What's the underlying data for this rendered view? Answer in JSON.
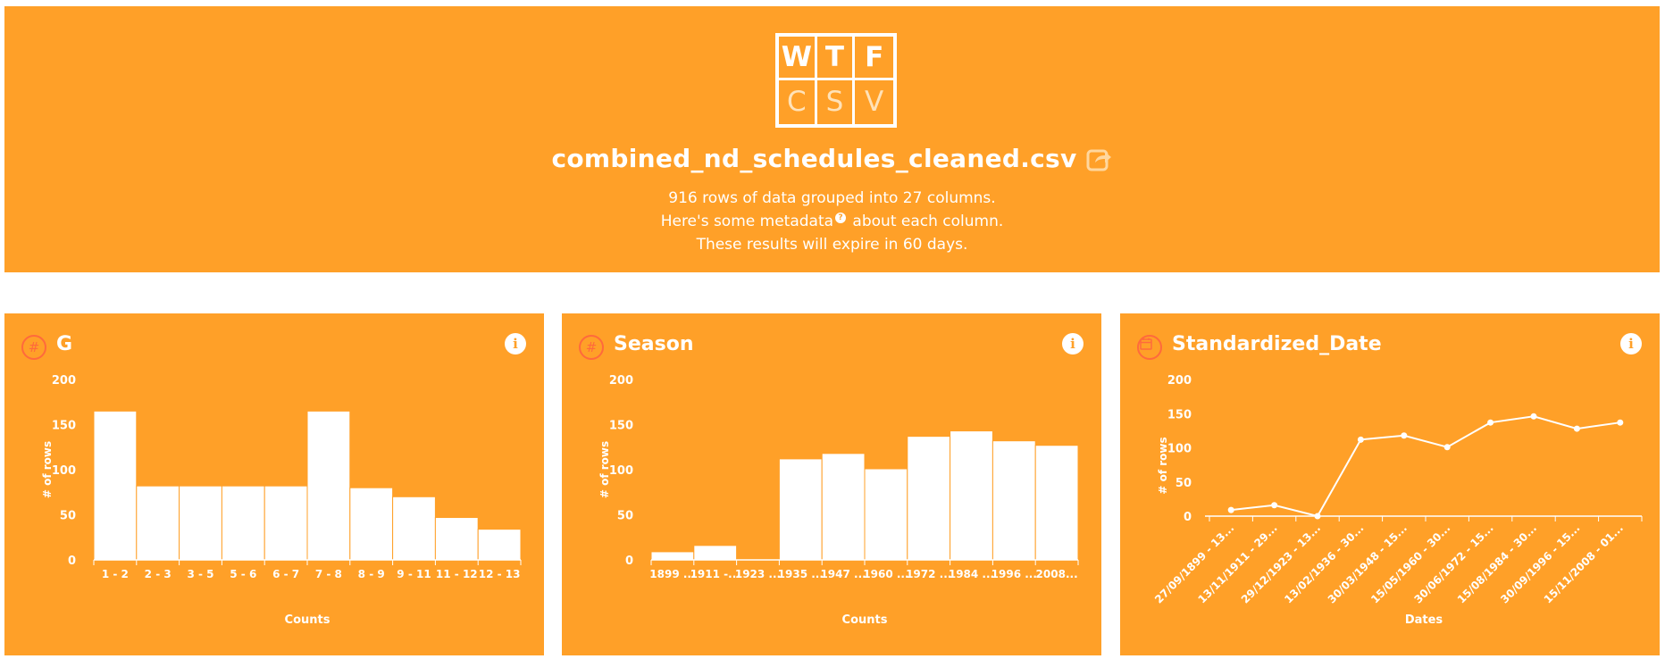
{
  "logo": {
    "letters_top": [
      "W",
      "T",
      "F"
    ],
    "letters_bottom": [
      "C",
      "S",
      "V"
    ]
  },
  "file": {
    "name": "combined_nd_schedules_cleaned.csv",
    "share_icon": "share-icon"
  },
  "meta": {
    "line1": "916 rows of data grouped into 27 columns.",
    "line2_pre": "Here's some metadata",
    "line2_help": "?",
    "line2_post": " about each column.",
    "line3": "These results will expire in 60 days."
  },
  "colors": {
    "accent": "#ffa028",
    "icon": "#ff6a3c"
  },
  "cards": [
    {
      "title": "G",
      "type_icon": "#",
      "info": "i"
    },
    {
      "title": "Season",
      "type_icon": "#",
      "info": "i"
    },
    {
      "title": "Standardized_Date",
      "type_icon": "calendar-icon",
      "info": "i"
    }
  ],
  "chart_data": [
    {
      "type": "bar",
      "categories": [
        "1 - 2",
        "2 - 3",
        "3 - 5",
        "5 - 6",
        "6 - 7",
        "7 - 8",
        "8 - 9",
        "9 - 11",
        "11 - 12",
        "12 - 13"
      ],
      "values": [
        165,
        82,
        82,
        82,
        82,
        165,
        80,
        70,
        47,
        34
      ],
      "xlabel": "Counts",
      "ylabel": "# of rows",
      "yticks": [
        0,
        50,
        100,
        150,
        200
      ],
      "ylim": [
        0,
        200
      ]
    },
    {
      "type": "bar",
      "categories": [
        "1899 ...",
        "1911 -...",
        "1923 ...",
        "1935 ...",
        "1947 ...",
        "1960 ...",
        "1972 ...",
        "1984 ...",
        "1996 ...",
        "2008..."
      ],
      "values": [
        9,
        16,
        0,
        112,
        118,
        101,
        137,
        143,
        132,
        127
      ],
      "xlabel": "Counts",
      "ylabel": "# of rows",
      "yticks": [
        0,
        50,
        100,
        150,
        200
      ],
      "ylim": [
        0,
        200
      ]
    },
    {
      "type": "line",
      "categories": [
        "27/09/1899 - 13...",
        "13/11/1911 - 29...",
        "29/12/1923 - 13...",
        "13/02/1936 - 30...",
        "30/03/1948 - 15...",
        "15/05/1960 - 30...",
        "30/06/1972 - 15...",
        "15/08/1984 - 30...",
        "30/09/1996 - 15...",
        "15/11/2008 - 01..."
      ],
      "values": [
        9,
        16,
        0,
        112,
        118,
        101,
        137,
        146,
        128,
        137
      ],
      "xlabel": "Dates",
      "ylabel": "# of rows",
      "yticks": [
        0,
        50,
        100,
        150,
        200
      ],
      "ylim": [
        0,
        200
      ]
    }
  ]
}
